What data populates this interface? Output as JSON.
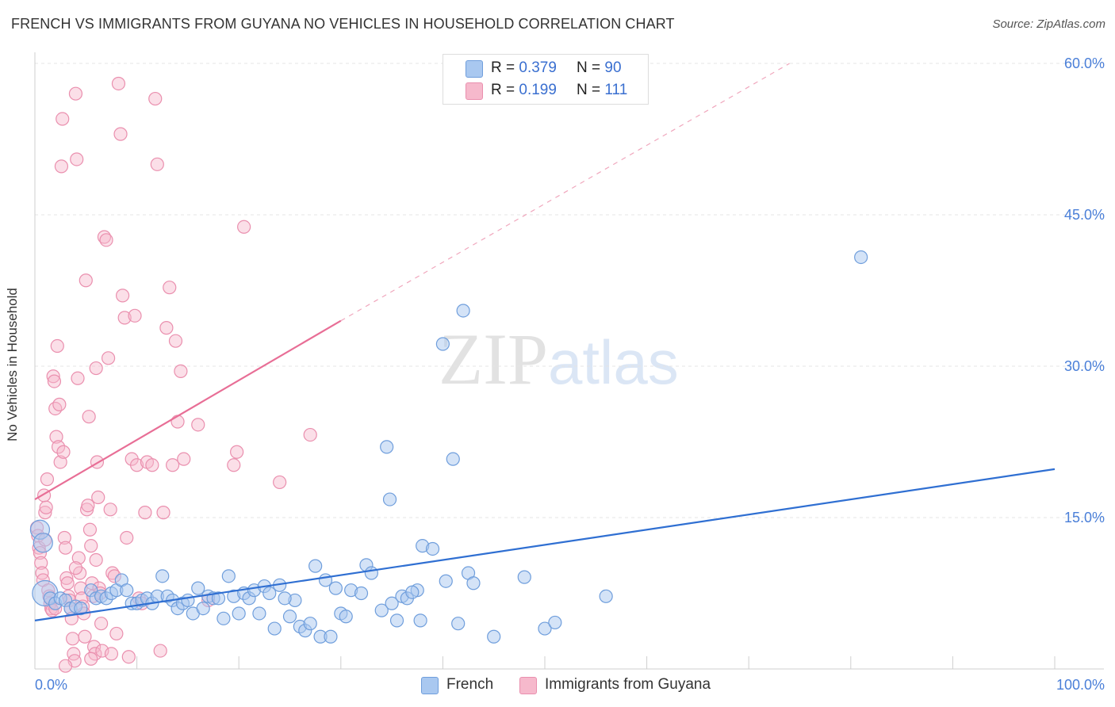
{
  "title": "FRENCH VS IMMIGRANTS FROM GUYANA NO VEHICLES IN HOUSEHOLD CORRELATION CHART",
  "source": "Source: ZipAtlas.com",
  "watermark": {
    "zip": "ZIP",
    "atlas": "atlas"
  },
  "legend_top": {
    "rows": [
      {
        "r_label": "R =",
        "r_value": "0.379",
        "n_label": "N =",
        "n_value": "90",
        "color": "#a9c8f0"
      },
      {
        "r_label": "R =",
        "r_value": "0.199",
        "n_label": "N =",
        "n_value": "111",
        "color": "#f6b9cc"
      }
    ]
  },
  "legend_bottom": {
    "items": [
      {
        "label": "French",
        "color": "#a9c8f0"
      },
      {
        "label": "Immigrants from Guyana",
        "color": "#f6b9cc"
      }
    ]
  },
  "colors": {
    "french_fill": "#a9c8f0",
    "french_stroke": "#6f9edc",
    "french_line": "#2f6fd2",
    "guyana_fill": "#f6b9cc",
    "guyana_stroke": "#ea8fae",
    "guyana_line": "#e86e96",
    "grid": "#e4e4e4",
    "tick_text": "#4a7fd8"
  },
  "chart_data": {
    "type": "scatter",
    "title": "FRENCH VS IMMIGRANTS FROM GUYANA NO VEHICLES IN HOUSEHOLD CORRELATION CHART",
    "xlabel": "",
    "ylabel": "No Vehicles in Household",
    "xlim": [
      0,
      100
    ],
    "ylim": [
      0,
      60
    ],
    "x_tick_labels": [
      "0.0%",
      "100.0%"
    ],
    "y_tick_labels": [
      "15.0%",
      "30.0%",
      "45.0%",
      "60.0%"
    ],
    "y_ticks": [
      15,
      30,
      45,
      60
    ],
    "grid": true,
    "legend_position": "top-center",
    "series": [
      {
        "name": "French",
        "trend": {
          "x0": 0,
          "y0": 4.8,
          "x1": 100,
          "y1": 19.8
        },
        "points": [
          [
            0.5,
            13.8
          ],
          [
            0.8,
            12.5
          ],
          [
            1.0,
            7.5
          ],
          [
            1.5,
            7.0
          ],
          [
            2.0,
            6.5
          ],
          [
            2.5,
            7.0
          ],
          [
            3.0,
            6.8
          ],
          [
            3.5,
            6.0
          ],
          [
            4.0,
            6.2
          ],
          [
            4.5,
            6.0
          ],
          [
            5.5,
            7.8
          ],
          [
            6.0,
            7.0
          ],
          [
            6.5,
            7.2
          ],
          [
            7.0,
            7.0
          ],
          [
            7.5,
            7.5
          ],
          [
            8.0,
            7.8
          ],
          [
            8.5,
            8.8
          ],
          [
            9.0,
            7.8
          ],
          [
            9.5,
            6.5
          ],
          [
            10.0,
            6.5
          ],
          [
            10.5,
            6.8
          ],
          [
            11.0,
            7.0
          ],
          [
            11.5,
            6.5
          ],
          [
            12.0,
            7.2
          ],
          [
            12.5,
            9.2
          ],
          [
            13.0,
            7.2
          ],
          [
            13.5,
            6.8
          ],
          [
            14.0,
            6.0
          ],
          [
            14.5,
            6.5
          ],
          [
            15.0,
            6.8
          ],
          [
            15.5,
            5.5
          ],
          [
            16.0,
            8.0
          ],
          [
            16.5,
            6.0
          ],
          [
            17.0,
            7.2
          ],
          [
            17.5,
            7.0
          ],
          [
            18.0,
            7.0
          ],
          [
            18.5,
            5.0
          ],
          [
            19.0,
            9.2
          ],
          [
            19.5,
            7.2
          ],
          [
            20.0,
            5.5
          ],
          [
            20.5,
            7.5
          ],
          [
            21.0,
            7.0
          ],
          [
            21.5,
            7.8
          ],
          [
            22.0,
            5.5
          ],
          [
            22.5,
            8.2
          ],
          [
            23.0,
            7.5
          ],
          [
            23.5,
            4.0
          ],
          [
            24.0,
            8.3
          ],
          [
            25.0,
            5.2
          ],
          [
            25.5,
            6.8
          ],
          [
            26.0,
            4.2
          ],
          [
            26.5,
            3.8
          ],
          [
            27.0,
            4.5
          ],
          [
            27.5,
            10.2
          ],
          [
            28.0,
            3.2
          ],
          [
            28.5,
            8.8
          ],
          [
            29.0,
            3.2
          ],
          [
            29.5,
            8.0
          ],
          [
            30.0,
            5.5
          ],
          [
            30.5,
            5.2
          ],
          [
            31.0,
            7.8
          ],
          [
            32.0,
            7.5
          ],
          [
            32.5,
            10.3
          ],
          [
            33.0,
            9.5
          ],
          [
            34.0,
            5.8
          ],
          [
            34.5,
            22.0
          ],
          [
            34.8,
            16.8
          ],
          [
            35.0,
            6.5
          ],
          [
            35.5,
            4.8
          ],
          [
            36.0,
            7.2
          ],
          [
            36.5,
            7.0
          ],
          [
            37.5,
            7.8
          ],
          [
            37.8,
            4.8
          ],
          [
            38.0,
            12.2
          ],
          [
            39.0,
            11.9
          ],
          [
            40.0,
            32.2
          ],
          [
            40.3,
            8.7
          ],
          [
            41.0,
            20.8
          ],
          [
            41.5,
            4.5
          ],
          [
            42.0,
            35.5
          ],
          [
            42.5,
            9.5
          ],
          [
            43.0,
            8.5
          ],
          [
            45.0,
            3.2
          ],
          [
            48.0,
            9.1
          ],
          [
            50.0,
            4.0
          ],
          [
            51.0,
            4.6
          ],
          [
            56.0,
            7.2
          ],
          [
            81.0,
            40.8
          ],
          [
            37.0,
            7.6
          ],
          [
            24.5,
            7.0
          ]
        ]
      },
      {
        "name": "Immigrants from Guyana",
        "trend": {
          "x0": 0,
          "y0": 16.8,
          "x1": 30,
          "y1": 34.5,
          "dash_x1": 74,
          "dash_y1": 60
        },
        "points": [
          [
            0.2,
            14.0
          ],
          [
            0.3,
            13.2
          ],
          [
            0.4,
            12.0
          ],
          [
            0.5,
            11.5
          ],
          [
            0.6,
            10.5
          ],
          [
            0.7,
            9.5
          ],
          [
            0.8,
            8.8
          ],
          [
            0.9,
            17.2
          ],
          [
            1.0,
            15.5
          ],
          [
            1.1,
            16.0
          ],
          [
            1.2,
            18.8
          ],
          [
            1.3,
            7.8
          ],
          [
            1.4,
            7.2
          ],
          [
            1.5,
            6.5
          ],
          [
            1.6,
            6.0
          ],
          [
            1.7,
            5.8
          ],
          [
            1.8,
            29.0
          ],
          [
            1.9,
            28.5
          ],
          [
            2.0,
            25.8
          ],
          [
            2.1,
            23.0
          ],
          [
            2.2,
            32.0
          ],
          [
            2.3,
            22.0
          ],
          [
            2.4,
            26.2
          ],
          [
            2.5,
            20.5
          ],
          [
            2.6,
            49.8
          ],
          [
            2.7,
            54.5
          ],
          [
            2.8,
            21.5
          ],
          [
            2.9,
            13.0
          ],
          [
            3.0,
            12.0
          ],
          [
            3.1,
            9.0
          ],
          [
            3.2,
            8.5
          ],
          [
            3.3,
            7.2
          ],
          [
            3.4,
            6.8
          ],
          [
            3.5,
            6.0
          ],
          [
            3.6,
            5.0
          ],
          [
            3.7,
            3.0
          ],
          [
            3.8,
            1.5
          ],
          [
            3.9,
            0.8
          ],
          [
            4.0,
            57.0
          ],
          [
            4.1,
            50.5
          ],
          [
            4.2,
            28.8
          ],
          [
            4.3,
            11.0
          ],
          [
            4.4,
            9.5
          ],
          [
            4.5,
            8.0
          ],
          [
            4.6,
            7.0
          ],
          [
            4.7,
            6.2
          ],
          [
            4.8,
            5.5
          ],
          [
            4.9,
            3.2
          ],
          [
            5.0,
            38.5
          ],
          [
            5.1,
            15.8
          ],
          [
            5.2,
            16.2
          ],
          [
            5.3,
            25.0
          ],
          [
            5.4,
            13.8
          ],
          [
            5.5,
            12.2
          ],
          [
            5.6,
            8.5
          ],
          [
            5.7,
            7.2
          ],
          [
            5.8,
            2.2
          ],
          [
            5.9,
            1.5
          ],
          [
            6.0,
            29.8
          ],
          [
            6.1,
            20.5
          ],
          [
            6.2,
            17.0
          ],
          [
            6.3,
            8.0
          ],
          [
            6.4,
            7.5
          ],
          [
            6.5,
            4.5
          ],
          [
            6.6,
            1.8
          ],
          [
            6.8,
            42.8
          ],
          [
            7.0,
            42.5
          ],
          [
            7.2,
            30.8
          ],
          [
            7.4,
            15.8
          ],
          [
            7.6,
            9.5
          ],
          [
            7.8,
            9.2
          ],
          [
            8.0,
            3.5
          ],
          [
            8.2,
            58.0
          ],
          [
            8.4,
            53.0
          ],
          [
            8.6,
            37.0
          ],
          [
            8.8,
            34.8
          ],
          [
            9.0,
            13.0
          ],
          [
            9.2,
            1.2
          ],
          [
            9.5,
            20.8
          ],
          [
            9.8,
            35.0
          ],
          [
            10.0,
            20.2
          ],
          [
            10.2,
            7.0
          ],
          [
            10.5,
            6.5
          ],
          [
            10.8,
            15.5
          ],
          [
            11.0,
            20.5
          ],
          [
            11.5,
            20.2
          ],
          [
            11.8,
            56.5
          ],
          [
            12.0,
            50.0
          ],
          [
            12.3,
            1.8
          ],
          [
            12.6,
            15.5
          ],
          [
            12.9,
            33.8
          ],
          [
            13.2,
            37.8
          ],
          [
            13.5,
            20.2
          ],
          [
            13.8,
            32.5
          ],
          [
            14.0,
            24.5
          ],
          [
            14.3,
            29.5
          ],
          [
            14.6,
            20.8
          ],
          [
            16.0,
            24.2
          ],
          [
            17.0,
            6.8
          ],
          [
            19.5,
            20.2
          ],
          [
            19.8,
            21.5
          ],
          [
            20.5,
            43.8
          ],
          [
            24.0,
            18.5
          ],
          [
            27.0,
            23.2
          ],
          [
            3.0,
            0.3
          ],
          [
            5.5,
            1.0
          ],
          [
            7.5,
            1.5
          ],
          [
            2.0,
            6.0
          ],
          [
            1.0,
            12.8
          ],
          [
            6.0,
            10.8
          ],
          [
            4.0,
            10.0
          ]
        ]
      }
    ]
  }
}
